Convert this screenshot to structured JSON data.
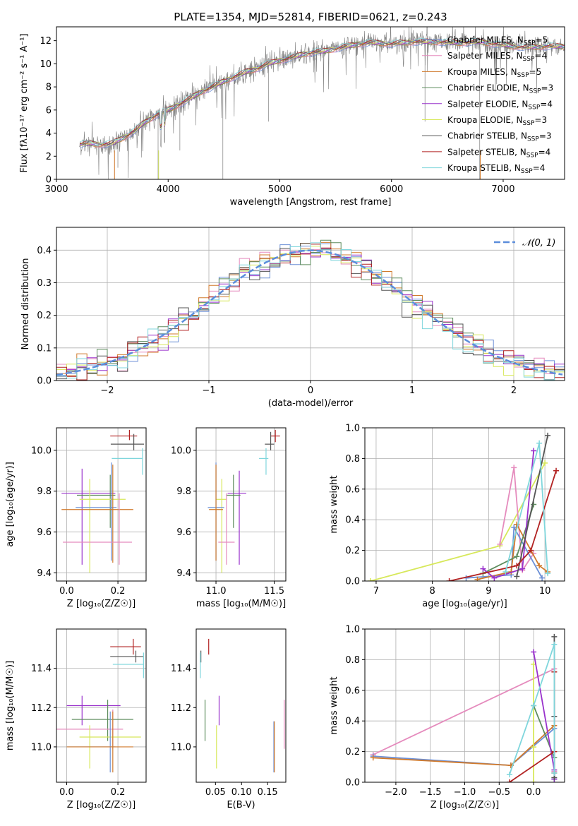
{
  "figure": {
    "title": "PLATE=1354, MJD=52814, FIBERID=0621, z=0.243"
  },
  "colors": {
    "Chabrier MILES": "#6b8fd6",
    "Salpeter MILES": "#e58bbd",
    "Kroupa MILES": "#d07a2c",
    "Chabrier ELODIE": "#5d8c5d",
    "Salpeter ELODIE": "#9932cc",
    "Kroupa ELODIE": "#d7e85a",
    "Chabrier STELIB": "#555555",
    "Salpeter STELIB": "#b22222",
    "Kroupa STELIB": "#7fd6dc",
    "gaussian": "#5b8ddb",
    "data_gray": "#808080"
  },
  "chart_data": [
    {
      "id": "spectrum",
      "type": "line",
      "title": "PLATE=1354, MJD=52814, FIBERID=0621, z=0.243",
      "xlabel": "wavelength [Angstrom, rest frame]",
      "ylabel": "Flux [fλ10⁻¹⁷ erg cm⁻² s⁻¹ A⁻¹]",
      "xlim": [
        3000,
        7550
      ],
      "ylim": [
        0,
        13.2
      ],
      "xticks": [
        "3000",
        "4000",
        "5000",
        "6000",
        "7000"
      ],
      "yticks": [
        "0",
        "2",
        "4",
        "6",
        "8",
        "10",
        "12"
      ],
      "grid": false,
      "legend_position": "upper-right",
      "legend": [
        {
          "label": "Chabrier MILES, N",
          "sub": "SSP",
          "tail": "=5"
        },
        {
          "label": "Salpeter MILES, N",
          "sub": "SSP",
          "tail": "=4"
        },
        {
          "label": "Kroupa MILES, N",
          "sub": "SSP",
          "tail": "=5"
        },
        {
          "label": "Chabrier ELODIE, N",
          "sub": "SSP",
          "tail": "=3"
        },
        {
          "label": "Salpeter ELODIE, N",
          "sub": "SSP",
          "tail": "=4"
        },
        {
          "label": "Kroupa ELODIE, N",
          "sub": "SSP",
          "tail": "=3"
        },
        {
          "label": "Chabrier STELIB, N",
          "sub": "SSP",
          "tail": "=3"
        },
        {
          "label": "Salpeter STELIB, N",
          "sub": "SSP",
          "tail": "=4"
        },
        {
          "label": "Kroupa STELIB, N",
          "sub": "SSP",
          "tail": "=4"
        }
      ],
      "continuum": {
        "x": [
          3200,
          3300,
          3400,
          3500,
          3600,
          3700,
          3800,
          3900,
          4000,
          4100,
          4200,
          4300,
          4400,
          4500,
          4600,
          4700,
          4800,
          4900,
          5000,
          5100,
          5200,
          5300,
          5400,
          5500,
          5600,
          5700,
          5800,
          5900,
          6000,
          6200,
          6400,
          6600,
          6800,
          7000,
          7200,
          7400
        ],
        "y": [
          3.0,
          3.1,
          3.0,
          3.1,
          3.6,
          4.2,
          5.0,
          5.6,
          6.0,
          6.5,
          7.0,
          7.6,
          8.0,
          8.5,
          8.9,
          9.3,
          9.6,
          10.0,
          10.3,
          10.5,
          10.8,
          11.0,
          11.1,
          11.3,
          11.5,
          11.7,
          11.8,
          11.8,
          11.7,
          11.9,
          11.9,
          11.8,
          11.9,
          11.6,
          11.4,
          11.5
        ]
      }
    },
    {
      "id": "residual-histogram",
      "type": "line",
      "xlabel": "(data-model)/error",
      "ylabel": "Normed distribution",
      "xlim": [
        -2.5,
        2.5
      ],
      "ylim": [
        0,
        0.47
      ],
      "xticks": [
        "−2",
        "−1",
        "0",
        "1",
        "2"
      ],
      "yticks": [
        "0.0",
        "0.1",
        "0.2",
        "0.3",
        "0.4"
      ],
      "grid": true,
      "legend_position": "upper-right",
      "gaussian_legend": "𝒩(0, 1)",
      "bin_width": 0.1
    },
    {
      "id": "age-vs-Z",
      "type": "scatter",
      "xlabel": "Z [log₁₀(Z/Z☉)]",
      "ylabel": "age  [log₁₀(age/yr)]",
      "xlim": [
        -0.04,
        0.31
      ],
      "ylim": [
        9.36,
        10.11
      ],
      "xticks": [
        "0.0",
        "0.2"
      ],
      "yticks": [
        "9.4",
        "9.6",
        "9.8",
        "10.0"
      ],
      "grid": true,
      "points": [
        {
          "series": "Salpeter STELIB",
          "x": 0.245,
          "y": 10.07,
          "xerr": [
            0.075,
            0.03
          ],
          "yerr": [
            0.02,
            0.03
          ]
        },
        {
          "series": "Chabrier STELIB",
          "x": 0.262,
          "y": 10.03,
          "xerr": [
            0.09,
            0.04
          ],
          "yerr": [
            0.03,
            0.05
          ]
        },
        {
          "series": "Kroupa STELIB",
          "x": 0.296,
          "y": 9.96,
          "xerr": [
            0.12,
            0.0
          ],
          "yerr": [
            0.08,
            0.05
          ]
        },
        {
          "series": "Salpeter ELODIE",
          "x": 0.06,
          "y": 9.79,
          "xerr": [
            0.08,
            0.13
          ],
          "yerr": [
            0.35,
            0.12
          ]
        },
        {
          "series": "Chabrier ELODIE",
          "x": 0.17,
          "y": 9.78,
          "xerr": [
            0.13,
            0.02
          ],
          "yerr": [
            0.16,
            0.1
          ]
        },
        {
          "series": "Kroupa ELODIE",
          "x": 0.09,
          "y": 9.76,
          "xerr": [
            0.04,
            0.14
          ],
          "yerr": [
            0.36,
            0.1
          ]
        },
        {
          "series": "Chabrier MILES",
          "x": 0.175,
          "y": 9.72,
          "xerr": [
            0.14,
            0.02
          ],
          "yerr": [
            0.26,
            0.22
          ]
        },
        {
          "series": "Kroupa MILES",
          "x": 0.18,
          "y": 9.71,
          "xerr": [
            0.2,
            0.08
          ],
          "yerr": [
            0.26,
            0.22
          ]
        },
        {
          "series": "Salpeter MILES",
          "x": 0.205,
          "y": 9.55,
          "xerr": [
            0.22,
            0.05
          ],
          "yerr": [
            0.11,
            0.24
          ]
        }
      ]
    },
    {
      "id": "age-vs-mass",
      "type": "scatter",
      "xlabel": "mass [log₁₀(M/M☉)]",
      "ylabel": "",
      "xlim": [
        10.83,
        11.6
      ],
      "ylim": [
        9.36,
        10.11
      ],
      "xticks": [
        "11.0",
        "11.5"
      ],
      "yticks": [
        "9.4",
        "9.6",
        "9.8",
        "10.0"
      ],
      "grid": true,
      "points": [
        {
          "series": "Salpeter STELIB",
          "x": 11.51,
          "y": 10.07,
          "xerr": [
            0.04,
            0.04
          ],
          "yerr": [
            0.03,
            0.03
          ]
        },
        {
          "series": "Chabrier STELIB",
          "x": 11.47,
          "y": 10.03,
          "xerr": [
            0.05,
            0.03
          ],
          "yerr": [
            0.03,
            0.06
          ]
        },
        {
          "series": "Kroupa STELIB",
          "x": 11.43,
          "y": 9.96,
          "xerr": [
            0.06,
            0.02
          ],
          "yerr": [
            0.08,
            0.05
          ]
        },
        {
          "series": "Salpeter ELODIE",
          "x": 11.2,
          "y": 9.79,
          "xerr": [
            0.1,
            0.06
          ],
          "yerr": [
            0.35,
            0.11
          ]
        },
        {
          "series": "Chabrier ELODIE",
          "x": 11.15,
          "y": 9.78,
          "xerr": [
            0.06,
            0.06
          ],
          "yerr": [
            0.16,
            0.1
          ]
        },
        {
          "series": "Kroupa ELODIE",
          "x": 11.05,
          "y": 9.76,
          "xerr": [
            0.05,
            0.04
          ],
          "yerr": [
            0.36,
            0.1
          ]
        },
        {
          "series": "Chabrier MILES",
          "x": 11.0,
          "y": 9.72,
          "xerr": [
            0.07,
            0.07
          ],
          "yerr": [
            0.26,
            0.22
          ]
        },
        {
          "series": "Kroupa MILES",
          "x": 11.0,
          "y": 9.71,
          "xerr": [
            0.06,
            0.06
          ],
          "yerr": [
            0.25,
            0.22
          ]
        },
        {
          "series": "Salpeter MILES",
          "x": 11.09,
          "y": 9.55,
          "xerr": [
            0.07,
            0.07
          ],
          "yerr": [
            0.11,
            0.24
          ]
        }
      ]
    },
    {
      "id": "weight-vs-age",
      "type": "line",
      "xlabel": "age  [log₁₀(age/yr)]",
      "ylabel": "mass weight",
      "xlim": [
        6.8,
        10.35
      ],
      "ylim": [
        0,
        1.0
      ],
      "xticks": [
        "7",
        "8",
        "9",
        "10"
      ],
      "yticks": [
        "0.0",
        "0.2",
        "0.4",
        "0.6",
        "0.8",
        "1.0"
      ],
      "grid": true,
      "series": [
        {
          "name": "Kroupa ELODIE",
          "x": [
            6.9,
            9.2,
            10.0
          ],
          "y": [
            0.0,
            0.23,
            0.77
          ]
        },
        {
          "name": "Salpeter MILES",
          "x": [
            9.2,
            9.45,
            9.6,
            9.8
          ],
          "y": [
            0.24,
            0.74,
            0.07,
            0.18
          ]
        },
        {
          "name": "Chabrier MILES",
          "x": [
            8.6,
            9.4,
            9.45,
            9.95
          ],
          "y": [
            0.02,
            0.04,
            0.35,
            0.02
          ]
        },
        {
          "name": "Kroupa MILES",
          "x": [
            8.8,
            9.4,
            9.5,
            9.9,
            10.05
          ],
          "y": [
            0.01,
            0.06,
            0.37,
            0.1,
            0.06
          ]
        },
        {
          "name": "Chabrier ELODIE",
          "x": [
            8.9,
            9.5,
            9.8
          ],
          "y": [
            0.05,
            0.16,
            0.5
          ]
        },
        {
          "name": "Salpeter ELODIE",
          "x": [
            8.9,
            9.1,
            9.6,
            9.8
          ],
          "y": [
            0.08,
            0.02,
            0.08,
            0.85
          ]
        },
        {
          "name": "Chabrier STELIB",
          "x": [
            9.5,
            10.05
          ],
          "y": [
            0.03,
            0.95
          ]
        },
        {
          "name": "Salpeter STELIB",
          "x": [
            8.3,
            9.5,
            9.75,
            10.2
          ],
          "y": [
            0.0,
            0.1,
            0.2,
            0.72
          ]
        },
        {
          "name": "Kroupa STELIB",
          "x": [
            9.3,
            9.9,
            10.05
          ],
          "y": [
            0.06,
            0.9,
            0.05
          ]
        }
      ]
    },
    {
      "id": "mass-vs-Z",
      "type": "scatter",
      "xlabel": "Z [log₁₀(Z/Z☉)]",
      "ylabel": "mass [log₁₀(M/M☉)]",
      "xlim": [
        -0.04,
        0.31
      ],
      "ylim": [
        10.82,
        11.6
      ],
      "xticks": [
        "0.0",
        "0.2"
      ],
      "yticks": [
        "11.0",
        "11.2",
        "11.4"
      ],
      "grid": true,
      "points": [
        {
          "series": "Salpeter STELIB",
          "x": 0.26,
          "y": 11.51,
          "xerr": [
            0.09,
            0.03
          ],
          "yerr": [
            0.04,
            0.04
          ]
        },
        {
          "series": "Chabrier STELIB",
          "x": 0.27,
          "y": 11.46,
          "xerr": [
            0.1,
            0.03
          ],
          "yerr": [
            0.03,
            0.03
          ]
        },
        {
          "series": "Kroupa STELIB",
          "x": 0.3,
          "y": 11.42,
          "xerr": [
            0.12,
            0.0
          ],
          "yerr": [
            0.07,
            0.06
          ]
        },
        {
          "series": "Salpeter ELODIE",
          "x": 0.06,
          "y": 11.21,
          "xerr": [
            0.06,
            0.15
          ],
          "yerr": [
            0.1,
            0.05
          ]
        },
        {
          "series": "Chabrier ELODIE",
          "x": 0.16,
          "y": 11.14,
          "xerr": [
            0.14,
            0.1
          ],
          "yerr": [
            0.11,
            0.1
          ]
        },
        {
          "series": "Salpeter MILES",
          "x": 0.18,
          "y": 11.09,
          "xerr": [
            0.23,
            0.04
          ],
          "yerr": [
            0.1,
            0.1
          ]
        },
        {
          "series": "Kroupa ELODIE",
          "x": 0.09,
          "y": 11.05,
          "xerr": [
            0.04,
            0.2
          ],
          "yerr": [
            0.16,
            0.06
          ]
        },
        {
          "series": "Chabrier MILES",
          "x": 0.17,
          "y": 11.0,
          "xerr": [
            0.17,
            0.02
          ],
          "yerr": [
            0.13,
            0.18
          ]
        },
        {
          "series": "Kroupa MILES",
          "x": 0.18,
          "y": 11.0,
          "xerr": [
            0.18,
            0.08
          ],
          "yerr": [
            0.13,
            0.18
          ]
        }
      ]
    },
    {
      "id": "mass-vs-EBV",
      "type": "scatter",
      "xlabel": "E(B-V)",
      "ylabel": "",
      "xlim": [
        0.013,
        0.185
      ],
      "ylim": [
        10.82,
        11.6
      ],
      "xticks": [
        "0.05",
        "0.10",
        "0.15"
      ],
      "yticks": [
        "11.0",
        "11.2",
        "11.4"
      ],
      "grid": false,
      "points": [
        {
          "series": "Salpeter STELIB",
          "x": 0.037,
          "y": 11.51,
          "yerr": [
            0.04,
            0.04
          ]
        },
        {
          "series": "Chabrier STELIB",
          "x": 0.022,
          "y": 11.46,
          "yerr": [
            0.03,
            0.03
          ]
        },
        {
          "series": "Kroupa STELIB",
          "x": 0.021,
          "y": 11.42,
          "yerr": [
            0.07,
            0.06
          ]
        },
        {
          "series": "Salpeter ELODIE",
          "x": 0.057,
          "y": 11.21,
          "yerr": [
            0.1,
            0.05
          ]
        },
        {
          "series": "Chabrier ELODIE",
          "x": 0.03,
          "y": 11.14,
          "yerr": [
            0.11,
            0.1
          ]
        },
        {
          "series": "Salpeter MILES",
          "x": 0.182,
          "y": 11.09,
          "yerr": [
            0.1,
            0.15
          ]
        },
        {
          "series": "Kroupa ELODIE",
          "x": 0.052,
          "y": 11.05,
          "yerr": [
            0.16,
            0.06
          ]
        },
        {
          "series": "Chabrier MILES",
          "x": 0.162,
          "y": 11.0,
          "yerr": [
            0.13,
            0.13
          ]
        },
        {
          "series": "Kroupa MILES",
          "x": 0.163,
          "y": 11.0,
          "yerr": [
            0.13,
            0.13
          ]
        }
      ]
    },
    {
      "id": "weight-vs-Z",
      "type": "line",
      "xlabel": "Z [log₁₀(Z/Z☉)]",
      "ylabel": "mass weight",
      "xlim": [
        -2.45,
        0.45
      ],
      "ylim": [
        0,
        1.0
      ],
      "xticks": [
        "−2.0",
        "−1.5",
        "−1.0",
        "−0.5",
        "0.0"
      ],
      "yticks": [
        "0.0",
        "0.2",
        "0.4",
        "0.6",
        "0.8",
        "1.0"
      ],
      "grid": true,
      "series": [
        {
          "name": "Salpeter MILES",
          "x": [
            -2.33,
            0.3,
            0.3
          ],
          "y": [
            0.18,
            0.74,
            0.07
          ]
        },
        {
          "name": "Chabrier MILES",
          "x": [
            -2.33,
            -0.33,
            0.3,
            0.3
          ],
          "y": [
            0.17,
            0.11,
            0.35,
            0.02
          ]
        },
        {
          "name": "Kroupa MILES",
          "x": [
            -2.33,
            -0.33,
            0.3,
            0.3
          ],
          "y": [
            0.16,
            0.11,
            0.37,
            0.06
          ]
        },
        {
          "name": "Kroupa ELODIE",
          "x": [
            0.0,
            0.0,
            0.0
          ],
          "y": [
            0.0,
            0.23,
            0.77
          ]
        },
        {
          "name": "Chabrier ELODIE",
          "x": [
            0.0,
            0.3
          ],
          "y": [
            0.5,
            0.16
          ]
        },
        {
          "name": "Salpeter ELODIE",
          "x": [
            0.0,
            0.3,
            0.3
          ],
          "y": [
            0.85,
            0.08,
            0.02
          ]
        },
        {
          "name": "Chabrier STELIB",
          "x": [
            0.3,
            0.3,
            0.3
          ],
          "y": [
            0.95,
            0.43,
            0.03
          ]
        },
        {
          "name": "Salpeter STELIB",
          "x": [
            -0.35,
            0.3,
            0.3
          ],
          "y": [
            0.0,
            0.2,
            0.72
          ]
        },
        {
          "name": "Kroupa STELIB",
          "x": [
            -0.35,
            0.0,
            0.3,
            0.3
          ],
          "y": [
            0.05,
            0.5,
            0.9,
            0.06
          ]
        }
      ]
    }
  ]
}
